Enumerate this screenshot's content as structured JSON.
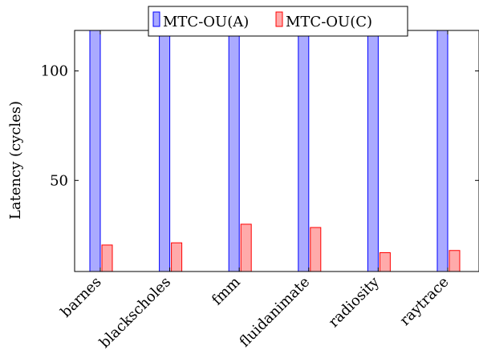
{
  "chart_data": {
    "type": "bar",
    "categories": [
      "barnes",
      "blackscholes",
      "fmm",
      "fluidanimate",
      "radiosity",
      "raytrace"
    ],
    "series": [
      {
        "name": "MTC-OU(A)",
        "values": [
          119,
          119,
          119,
          119,
          119,
          119
        ],
        "color": "#aaaaff",
        "stroke": "#0000ff"
      },
      {
        "name": "MTC-OU(C)",
        "values": [
          20.5,
          21.5,
          30,
          28.5,
          17,
          18
        ],
        "color": "#ffaaaa",
        "stroke": "#ff0000"
      }
    ],
    "xlabel": "",
    "ylabel": "Latency (cycles)",
    "ylim": [
      8.4,
      118.5
    ],
    "yticks": [
      50,
      100
    ],
    "legend": "top-center",
    "grid": false
  }
}
